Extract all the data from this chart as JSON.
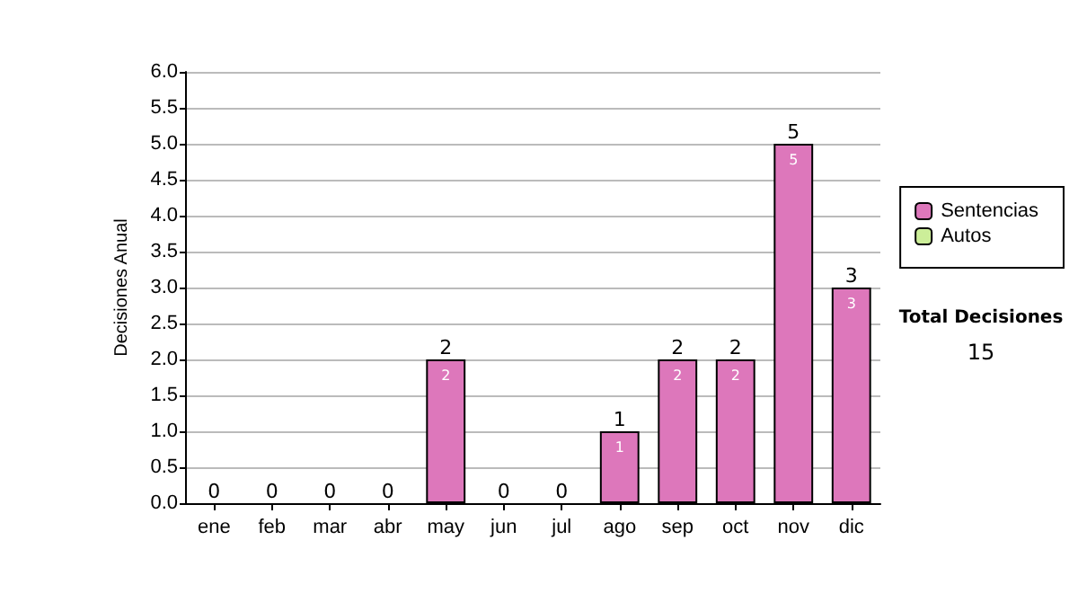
{
  "chart_data": {
    "type": "bar",
    "stacked": true,
    "ylabel": "Decisiones Anual",
    "categories": [
      "ene",
      "feb",
      "mar",
      "abr",
      "may",
      "jun",
      "jul",
      "ago",
      "sep",
      "oct",
      "nov",
      "dic"
    ],
    "series": [
      {
        "name": "Sentencias",
        "color": "#dd77bb",
        "values": [
          0,
          0,
          0,
          0,
          2,
          0,
          0,
          1,
          2,
          2,
          5,
          3
        ],
        "value_labels": [
          null,
          null,
          null,
          null,
          "2",
          null,
          null,
          "1",
          "2",
          "2",
          "5",
          "3"
        ]
      },
      {
        "name": "Autos",
        "color": "#ccee99",
        "values": [
          0,
          0,
          0,
          0,
          0,
          0,
          0,
          0,
          0,
          0,
          0,
          0
        ]
      }
    ],
    "totals": [
      "0",
      "0",
      "0",
      "0",
      "2",
      "0",
      "0",
      "1",
      "2",
      "2",
      "5",
      "3"
    ],
    "ylim": [
      0,
      6
    ],
    "yticks": [
      {
        "value": 0,
        "label": "0.0"
      },
      {
        "value": 0.5,
        "label": "0.5"
      },
      {
        "value": 1,
        "label": "1.0"
      },
      {
        "value": 1.5,
        "label": "1.5"
      },
      {
        "value": 2,
        "label": "2.0"
      },
      {
        "value": 2.5,
        "label": "2.5"
      },
      {
        "value": 3,
        "label": "3.0"
      },
      {
        "value": 3.5,
        "label": "3.5"
      },
      {
        "value": 4,
        "label": "4.0"
      },
      {
        "value": 4.5,
        "label": "4.5"
      },
      {
        "value": 5,
        "label": "5.0"
      },
      {
        "value": 5.5,
        "label": "5.5"
      },
      {
        "value": 6,
        "label": "6.0"
      }
    ],
    "grid": "y",
    "legend": "right",
    "annotations": [
      "Total Decisiones",
      "15"
    ]
  }
}
